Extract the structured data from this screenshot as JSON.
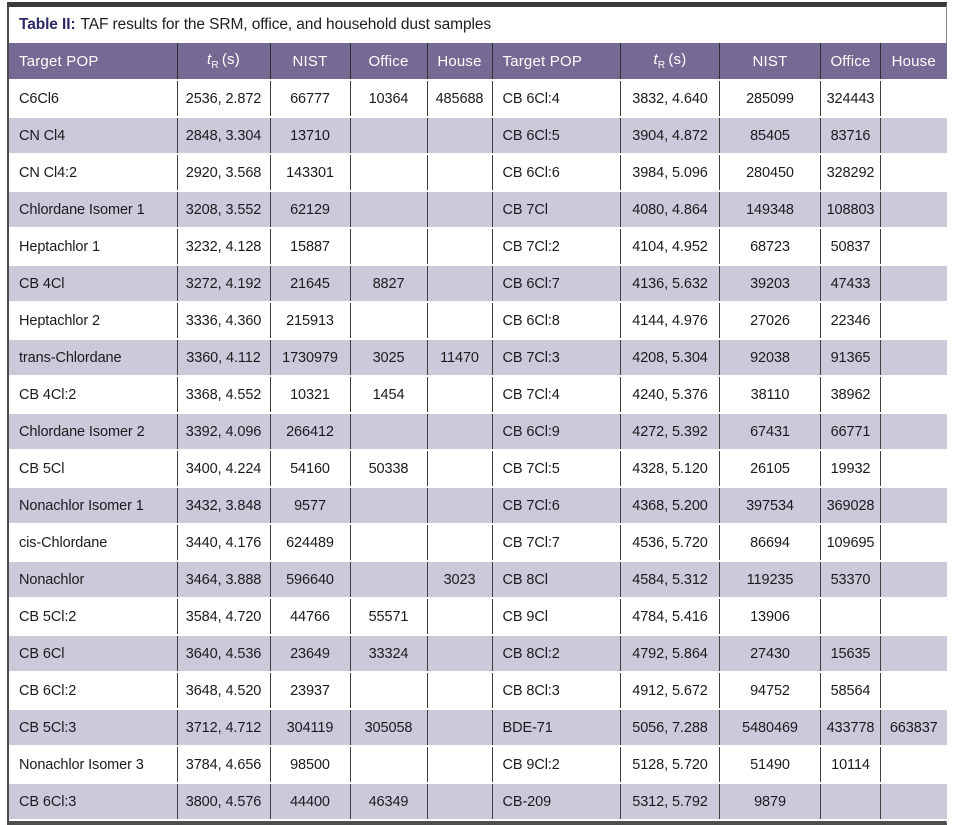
{
  "title": {
    "label": "Table II:",
    "text": "TAF results for the SRM, office, and household dust samples"
  },
  "header": {
    "pop": "Target POP",
    "tr_t": "t",
    "tr_sub": "R",
    "tr_unit": "(s)",
    "nist": "NIST",
    "office": "Office",
    "house": "House"
  },
  "colors": {
    "header_bg": "#756a93",
    "row_shade": "#cdc9da",
    "title_accent": "#2b2967",
    "grid_line": "#3e3e3e",
    "frame": "#3a3a3a"
  },
  "left_rows": [
    [
      "C6Cl6",
      "2536, 2.872",
      "66777",
      "10364",
      "485688"
    ],
    [
      "CN Cl4",
      "2848, 3.304",
      "13710",
      "",
      ""
    ],
    [
      "CN Cl4:2",
      "2920, 3.568",
      "143301",
      "",
      ""
    ],
    [
      "Chlordane Isomer 1",
      "3208, 3.552",
      "62129",
      "",
      ""
    ],
    [
      "Heptachlor 1",
      "3232, 4.128",
      "15887",
      "",
      ""
    ],
    [
      "CB 4Cl",
      "3272, 4.192",
      "21645",
      "8827",
      ""
    ],
    [
      "Heptachlor 2",
      "3336, 4.360",
      "215913",
      "",
      ""
    ],
    [
      "trans-Chlordane",
      "3360, 4.112",
      "1730979",
      "3025",
      "11470"
    ],
    [
      "CB 4Cl:2",
      "3368, 4.552",
      "10321",
      "1454",
      ""
    ],
    [
      "Chlordane Isomer 2",
      "3392, 4.096",
      "266412",
      "",
      ""
    ],
    [
      "CB 5Cl",
      "3400, 4.224",
      "54160",
      "50338",
      ""
    ],
    [
      "Nonachlor Isomer 1",
      "3432, 3.848",
      "9577",
      "",
      ""
    ],
    [
      "cis-Chlordane",
      "3440, 4.176",
      "624489",
      "",
      ""
    ],
    [
      "Nonachlor",
      "3464, 3.888",
      "596640",
      "",
      "3023"
    ],
    [
      "CB 5Cl:2",
      "3584, 4.720",
      "44766",
      "55571",
      ""
    ],
    [
      "CB 6Cl",
      "3640, 4.536",
      "23649",
      "33324",
      ""
    ],
    [
      "CB 6Cl:2",
      "3648, 4.520",
      "23937",
      "",
      ""
    ],
    [
      "CB 5Cl:3",
      "3712, 4.712",
      "304119",
      "305058",
      ""
    ],
    [
      "Nonachlor Isomer 3",
      "3784, 4.656",
      "98500",
      "",
      ""
    ],
    [
      "CB 6Cl:3",
      "3800, 4.576",
      "44400",
      "46349",
      ""
    ]
  ],
  "right_rows": [
    [
      "CB 6Cl:4",
      "3832, 4.640",
      "285099",
      "324443",
      ""
    ],
    [
      "CB 6Cl:5",
      "3904, 4.872",
      "85405",
      "83716",
      ""
    ],
    [
      "CB 6Cl:6",
      "3984, 5.096",
      "280450",
      "328292",
      ""
    ],
    [
      "CB 7Cl",
      "4080, 4.864",
      "149348",
      "108803",
      ""
    ],
    [
      "CB 7Cl:2",
      "4104, 4.952",
      "68723",
      "50837",
      ""
    ],
    [
      "CB 6Cl:7",
      "4136, 5.632",
      "39203",
      "47433",
      ""
    ],
    [
      "CB 6Cl:8",
      "4144, 4.976",
      "27026",
      "22346",
      ""
    ],
    [
      "CB 7Cl:3",
      "4208, 5.304",
      "92038",
      "91365",
      ""
    ],
    [
      "CB 7Cl:4",
      "4240, 5.376",
      "38110",
      "38962",
      ""
    ],
    [
      "CB 6Cl:9",
      "4272, 5.392",
      "67431",
      "66771",
      ""
    ],
    [
      "CB 7Cl:5",
      "4328, 5.120",
      "26105",
      "19932",
      ""
    ],
    [
      "CB 7Cl:6",
      "4368, 5.200",
      "397534",
      "369028",
      ""
    ],
    [
      "CB 7Cl:7",
      "4536, 5.720",
      "86694",
      "109695",
      ""
    ],
    [
      "CB 8Cl",
      "4584, 5.312",
      "119235",
      "53370",
      ""
    ],
    [
      "CB 9Cl",
      "4784, 5.416",
      "13906",
      "",
      ""
    ],
    [
      "CB 8Cl:2",
      "4792, 5.864",
      "27430",
      "15635",
      ""
    ],
    [
      "CB 8Cl:3",
      "4912, 5.672",
      "94752",
      "58564",
      ""
    ],
    [
      "BDE-71",
      "5056, 7.288",
      "5480469",
      "433778",
      "663837"
    ],
    [
      "CB 9Cl:2",
      "5128, 5.720",
      "51490",
      "10114",
      ""
    ],
    [
      "CB-209",
      "5312, 5.792",
      "9879",
      "",
      ""
    ]
  ]
}
